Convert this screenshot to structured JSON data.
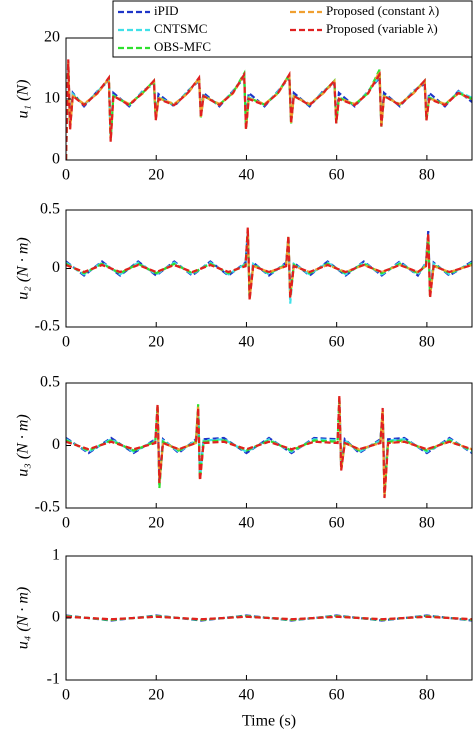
{
  "chart_data": [
    {
      "type": "line",
      "ylabel": "u₁ (N)",
      "legend": "upper right",
      "line_style": "dashed",
      "xlim": [
        0,
        90
      ],
      "xticks": [
        0,
        20,
        40,
        60,
        80
      ],
      "ylim": [
        0,
        20
      ],
      "yticks": [
        0,
        10,
        20
      ],
      "x": [
        0,
        0.5,
        0.9,
        1.5,
        4,
        7,
        9.5,
        9.9,
        10.5,
        14,
        17,
        19.5,
        19.9,
        20.5,
        24,
        27,
        29.5,
        29.9,
        30.5,
        34,
        37,
        39.5,
        39.9,
        40.5,
        44,
        47,
        49.5,
        49.9,
        50.5,
        54,
        57,
        59.5,
        59.9,
        60.5,
        64,
        67,
        69.5,
        69.9,
        70.5,
        74,
        77,
        79.5,
        79.9,
        80.5,
        84,
        87,
        90
      ],
      "series": [
        {
          "name": "iPID",
          "color": "#1f35c8",
          "values": [
            0,
            15.5,
            6,
            11,
            8.8,
            11.3,
            13,
            4,
            11,
            8.8,
            11.3,
            12.5,
            7,
            10.8,
            8.8,
            11.3,
            13,
            7.5,
            11,
            8.8,
            11.3,
            13.5,
            6,
            11,
            8.8,
            11.3,
            13.5,
            6.5,
            11,
            8.8,
            11.3,
            12.5,
            6.5,
            11,
            8.8,
            11.3,
            13.5,
            6,
            11,
            8.8,
            11.3,
            12.5,
            7,
            11,
            8.8,
            11.3,
            9.5
          ]
        },
        {
          "name": "CNTSMC",
          "color": "#3fe0e8",
          "values": [
            0,
            15.8,
            5.5,
            10.8,
            9,
            11.2,
            13.2,
            3.5,
            10.6,
            9,
            11.2,
            12.8,
            6.8,
            10.3,
            9,
            11.2,
            13.2,
            7.2,
            10.6,
            9,
            11.2,
            13.8,
            5.5,
            10.3,
            9,
            11.2,
            13.8,
            6.2,
            10.6,
            9,
            11.2,
            12.8,
            6.2,
            10.3,
            9,
            11.2,
            13.8,
            5.8,
            10.6,
            9,
            11.2,
            12.8,
            6.8,
            10.3,
            9,
            11.2,
            10.2
          ]
        },
        {
          "name": "OBS-MFC",
          "color": "#2ee02e",
          "values": [
            0,
            16,
            5.2,
            10.6,
            9.1,
            11,
            13.4,
            3.2,
            10.5,
            9.1,
            11,
            13,
            6.6,
            10.2,
            9.1,
            11,
            13.4,
            7,
            10.5,
            9.1,
            11,
            14.2,
            5.2,
            10.2,
            9.1,
            11,
            14,
            6,
            10.5,
            9.1,
            11,
            13,
            6,
            10.2,
            9.1,
            11,
            14.8,
            5.4,
            10.5,
            9.1,
            11,
            13,
            6.6,
            10.2,
            9.1,
            11,
            10
          ]
        },
        {
          "name": "Proposed (constant λ)",
          "color": "#f0a030",
          "values": [
            0,
            16.2,
            5.1,
            10.5,
            9.2,
            10.9,
            13.4,
            3.1,
            10.5,
            9.2,
            10.9,
            12.9,
            6.6,
            10.1,
            9.2,
            10.9,
            13.4,
            7.1,
            10.4,
            9.2,
            10.9,
            13.9,
            5.1,
            10.1,
            9.2,
            10.9,
            13.9,
            6.1,
            10.4,
            9.2,
            10.9,
            12.9,
            6.1,
            10.1,
            9.2,
            10.9,
            14.5,
            5.5,
            10.4,
            9.2,
            10.9,
            12.9,
            6.6,
            10.1,
            9.2,
            10.9,
            10
          ]
        },
        {
          "name": "Proposed (variable λ)",
          "color": "#e02020",
          "values": [
            0,
            16.5,
            5,
            10.5,
            9,
            11,
            13.5,
            3,
            10.5,
            9,
            11,
            13,
            6.5,
            10,
            9,
            11,
            13.5,
            7,
            10.5,
            9,
            11,
            14,
            5,
            10,
            9,
            11,
            14,
            6,
            10.5,
            9,
            11,
            13,
            6,
            10,
            9,
            11,
            14,
            5.5,
            10.5,
            9,
            11,
            13,
            6.5,
            10,
            9,
            11,
            10
          ]
        }
      ]
    },
    {
      "type": "line",
      "ylabel": "u₂ (N · m)",
      "line_style": "dashed",
      "xlim": [
        0,
        90
      ],
      "xticks": [
        0,
        20,
        40,
        60,
        80
      ],
      "ylim": [
        -0.5,
        0.5
      ],
      "yticks": [
        -0.5,
        0,
        0.5
      ],
      "x": [
        0,
        4,
        8,
        12,
        16,
        20,
        24,
        28,
        32,
        36,
        39.8,
        40.3,
        40.7,
        41.5,
        45,
        48.8,
        49.3,
        49.7,
        50.5,
        54,
        58,
        62,
        66,
        70,
        74,
        78,
        79.8,
        80.3,
        80.7,
        81.5,
        85,
        90
      ],
      "series": [
        {
          "color": "#1f35c8",
          "values": [
            0.06,
            -0.06,
            0.06,
            -0.06,
            0.06,
            -0.06,
            0.06,
            -0.06,
            0.06,
            -0.06,
            0.05,
            0.3,
            -0.22,
            0.05,
            -0.06,
            0.05,
            0.25,
            -0.22,
            0.05,
            -0.06,
            0.06,
            -0.06,
            0.06,
            -0.06,
            0.06,
            -0.06,
            0.05,
            0.32,
            -0.2,
            0.05,
            -0.06,
            0.06
          ]
        },
        {
          "color": "#3fe0e8",
          "values": [
            0.05,
            -0.05,
            0.05,
            -0.05,
            0.05,
            -0.05,
            0.05,
            -0.05,
            0.05,
            -0.05,
            0.04,
            0.32,
            -0.25,
            0.04,
            -0.05,
            0.04,
            0.26,
            -0.3,
            0.04,
            -0.05,
            0.05,
            -0.05,
            0.05,
            -0.05,
            0.05,
            -0.05,
            0.04,
            0.28,
            -0.22,
            0.04,
            -0.05,
            0.05
          ]
        },
        {
          "color": "#2ee02e",
          "values": [
            0.04,
            -0.04,
            0.04,
            -0.04,
            0.04,
            -0.04,
            0.04,
            -0.04,
            0.04,
            -0.04,
            0.03,
            0.33,
            -0.26,
            0.03,
            -0.04,
            0.03,
            0.27,
            -0.24,
            0.03,
            -0.04,
            0.04,
            -0.04,
            0.04,
            -0.04,
            0.04,
            -0.04,
            0.03,
            0.29,
            -0.24,
            0.03,
            -0.04,
            0.04
          ]
        },
        {
          "color": "#f0a030",
          "values": [
            0.03,
            -0.03,
            0.03,
            -0.03,
            0.03,
            -0.03,
            0.03,
            -0.03,
            0.03,
            -0.03,
            0.02,
            0.34,
            -0.26,
            0.02,
            -0.03,
            0.02,
            0.27,
            -0.25,
            0.02,
            -0.03,
            0.03,
            -0.03,
            0.03,
            -0.03,
            0.03,
            -0.03,
            0.02,
            0.29,
            -0.24,
            0.02,
            -0.03,
            0.03
          ]
        },
        {
          "color": "#e02020",
          "values": [
            0.03,
            -0.03,
            0.03,
            -0.03,
            0.03,
            -0.03,
            0.03,
            -0.03,
            0.03,
            -0.03,
            0.02,
            0.35,
            -0.27,
            0.02,
            -0.03,
            0.02,
            0.28,
            -0.25,
            0.02,
            -0.03,
            0.03,
            -0.03,
            0.03,
            -0.03,
            0.03,
            -0.03,
            0.02,
            0.3,
            -0.25,
            0.02,
            -0.03,
            0.03
          ]
        }
      ]
    },
    {
      "type": "line",
      "ylabel": "u₃ (N · m)",
      "line_style": "dashed",
      "xlim": [
        0,
        90
      ],
      "xticks": [
        0,
        20,
        40,
        60,
        80
      ],
      "ylim": [
        -0.5,
        0.5
      ],
      "yticks": [
        -0.5,
        0,
        0.5
      ],
      "x": [
        0,
        5,
        10,
        15,
        19.8,
        20.3,
        20.7,
        21.5,
        25,
        28.8,
        29.3,
        29.7,
        30.5,
        35,
        40,
        45,
        50,
        55,
        60.2,
        60.6,
        61,
        61.8,
        65,
        69.7,
        70.2,
        70.6,
        71.4,
        75,
        80,
        85,
        90
      ],
      "series": [
        {
          "color": "#1f35c8",
          "values": [
            0.06,
            -0.06,
            0.06,
            -0.06,
            0.05,
            0.28,
            -0.28,
            0.05,
            -0.06,
            0.05,
            0.28,
            -0.25,
            0.05,
            0.06,
            -0.06,
            0.06,
            -0.06,
            0.06,
            0.05,
            0.35,
            -0.18,
            0.05,
            -0.06,
            0.05,
            0.25,
            -0.35,
            0.05,
            0.06,
            -0.06,
            0.06,
            -0.06
          ]
        },
        {
          "color": "#3fe0e8",
          "values": [
            0.05,
            -0.05,
            0.05,
            -0.05,
            0.04,
            0.3,
            -0.32,
            0.04,
            -0.05,
            0.04,
            0.3,
            -0.26,
            0.04,
            0.05,
            -0.05,
            0.05,
            -0.05,
            0.05,
            0.04,
            0.36,
            -0.18,
            0.04,
            -0.05,
            0.04,
            0.27,
            -0.38,
            0.04,
            0.05,
            -0.05,
            0.05,
            -0.05
          ]
        },
        {
          "color": "#2ee02e",
          "values": [
            0.04,
            -0.04,
            0.04,
            -0.04,
            0.03,
            0.32,
            -0.34,
            0.03,
            -0.04,
            0.03,
            0.33,
            -0.27,
            0.03,
            0.04,
            -0.04,
            0.04,
            -0.04,
            0.04,
            0.03,
            0.38,
            -0.19,
            0.03,
            -0.04,
            0.03,
            0.28,
            -0.4,
            0.03,
            0.04,
            -0.04,
            0.04,
            -0.04
          ]
        },
        {
          "color": "#f0a030",
          "values": [
            0.03,
            -0.03,
            0.03,
            -0.03,
            0.02,
            0.32,
            -0.3,
            0.02,
            -0.03,
            0.02,
            0.31,
            -0.28,
            0.02,
            0.03,
            -0.03,
            0.03,
            -0.03,
            0.03,
            0.02,
            0.39,
            -0.2,
            0.02,
            -0.03,
            0.02,
            0.29,
            -0.41,
            0.02,
            0.03,
            -0.03,
            0.03,
            -0.03
          ]
        },
        {
          "color": "#e02020",
          "values": [
            0.03,
            -0.03,
            0.03,
            -0.03,
            0.02,
            0.33,
            -0.3,
            0.02,
            -0.03,
            0.02,
            0.3,
            -0.28,
            0.02,
            0.03,
            -0.03,
            0.03,
            -0.03,
            0.03,
            0.02,
            0.4,
            -0.2,
            0.02,
            -0.03,
            0.02,
            0.3,
            -0.42,
            0.02,
            0.03,
            -0.03,
            0.03,
            -0.03
          ]
        }
      ]
    },
    {
      "type": "line",
      "ylabel": "u₄ (N · m)",
      "xlabel": "Time (s)",
      "line_style": "dashed",
      "xlim": [
        0,
        90
      ],
      "xticks": [
        0,
        20,
        40,
        60,
        80
      ],
      "ylim": [
        -1,
        1
      ],
      "yticks": [
        -1,
        0,
        1
      ],
      "x": [
        0,
        10,
        20,
        30,
        40,
        50,
        60,
        70,
        80,
        90
      ],
      "series": [
        {
          "color": "#1f35c8",
          "values": [
            0.04,
            -0.04,
            0.04,
            -0.04,
            0.04,
            -0.04,
            0.04,
            -0.04,
            0.04,
            -0.04
          ]
        },
        {
          "color": "#3fe0e8",
          "values": [
            0.03,
            -0.03,
            0.03,
            -0.03,
            0.03,
            -0.03,
            0.03,
            -0.03,
            0.03,
            -0.03
          ]
        },
        {
          "color": "#2ee02e",
          "values": [
            0.03,
            -0.03,
            0.03,
            -0.03,
            0.03,
            -0.03,
            0.03,
            -0.03,
            0.03,
            -0.03
          ]
        },
        {
          "color": "#f0a030",
          "values": [
            0.02,
            -0.02,
            0.02,
            -0.02,
            0.02,
            -0.02,
            0.02,
            -0.02,
            0.02,
            -0.02
          ]
        },
        {
          "color": "#e02020",
          "values": [
            0.02,
            -0.02,
            0.02,
            -0.02,
            0.02,
            -0.02,
            0.02,
            -0.02,
            0.02,
            -0.02
          ]
        }
      ]
    }
  ]
}
